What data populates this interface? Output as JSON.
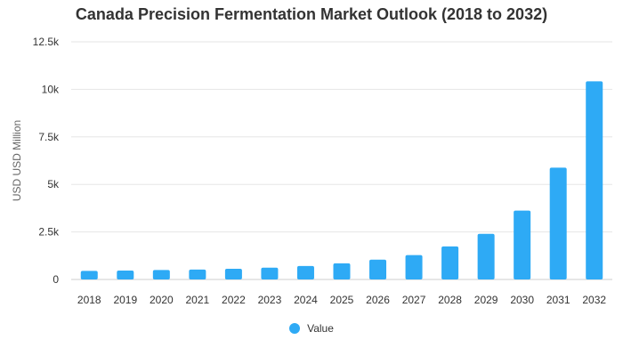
{
  "chart_data": {
    "type": "bar",
    "title": "Canada Precision Fermentation Market Outlook (2018 to 2032)",
    "xlabel": "",
    "ylabel": "USD USD Million",
    "categories": [
      "2018",
      "2019",
      "2020",
      "2021",
      "2022",
      "2023",
      "2024",
      "2025",
      "2026",
      "2027",
      "2028",
      "2029",
      "2030",
      "2031",
      "2032"
    ],
    "series": [
      {
        "name": "Value",
        "color": "#2eaaf5",
        "values": [
          450,
          470,
          500,
          520,
          560,
          620,
          710,
          850,
          1040,
          1280,
          1740,
          2400,
          3620,
          5880,
          10420
        ]
      }
    ],
    "ylim": [
      0,
      12500
    ],
    "yticks": [
      0,
      2500,
      5000,
      7500,
      10000,
      12500
    ],
    "ytick_labels": [
      "0",
      "2.5k",
      "5k",
      "7.5k",
      "10k",
      "12.5k"
    ],
    "grid": true,
    "legend_position": "bottom"
  }
}
